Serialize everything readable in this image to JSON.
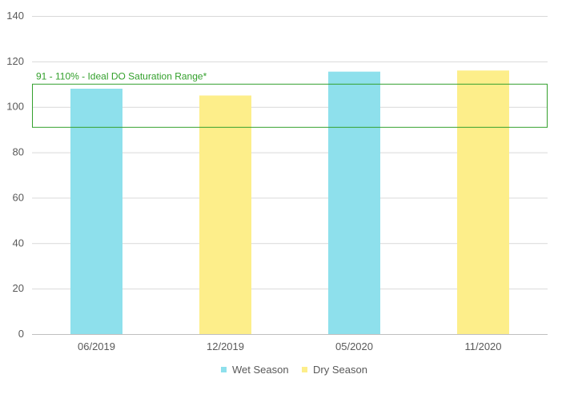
{
  "chart_data": {
    "type": "bar",
    "categories": [
      "06/2019",
      "12/2019",
      "05/2020",
      "11/2020"
    ],
    "values": [
      108,
      105,
      115.5,
      116
    ],
    "bar_series": [
      "Wet Season",
      "Dry Season",
      "Wet Season",
      "Dry Season"
    ],
    "ylim": [
      0,
      140
    ],
    "yticks": [
      0,
      20,
      40,
      60,
      80,
      100,
      120,
      140
    ],
    "grid": true,
    "legend": {
      "placement": "bottom-center",
      "entries": [
        {
          "name": "Wet Season",
          "color": "#8ee0ec"
        },
        {
          "name": "Dry Season",
          "color": "#fdee8a"
        }
      ]
    },
    "annotation": {
      "text": "91 - 110% - Ideal DO Saturation Range*",
      "y_range": [
        91,
        110
      ],
      "color": "#33a02c"
    },
    "title": "",
    "xlabel": "",
    "ylabel": ""
  }
}
